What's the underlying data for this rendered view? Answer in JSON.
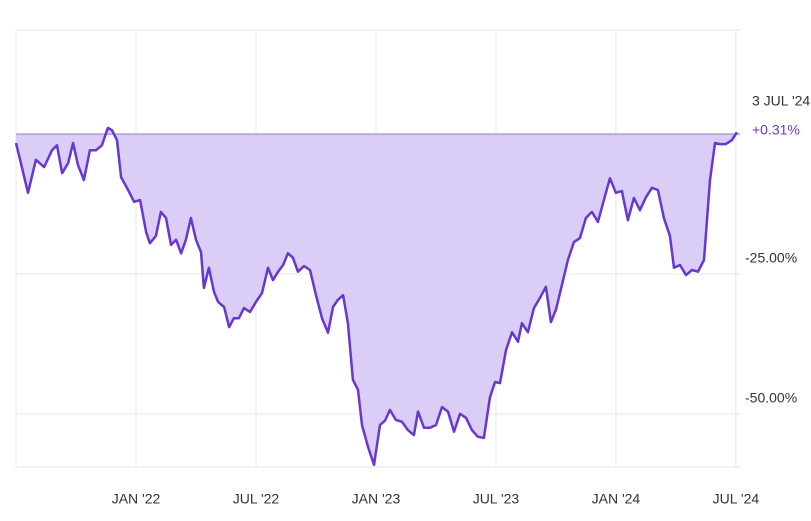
{
  "chart_data": {
    "type": "area",
    "color": "#6837cf",
    "fill": "#dacdf6",
    "grid": true,
    "xlim": [
      2021.5,
      2024.517
    ],
    "xticks": [
      {
        "value": 2022,
        "label": "JAN '22"
      },
      {
        "value": 2022.5,
        "label": "JUL '22"
      },
      {
        "value": 2023,
        "label": "JAN '23"
      },
      {
        "value": 2023.5,
        "label": "JUL '23"
      },
      {
        "value": 2024,
        "label": "JAN '24"
      },
      {
        "value": 2024.5,
        "label": "JUL '24"
      }
    ],
    "ylim": [
      -59.5,
      18.6
    ],
    "yticks": [
      {
        "value": -25,
        "label": "-25.00%"
      },
      {
        "value": -50,
        "label": "-50.00%"
      }
    ],
    "annotation_date": "3 JUL '24",
    "annotation_label": "+0.31%",
    "x": [
      2021.5,
      2021.517,
      2021.55,
      2021.583,
      2021.617,
      2021.65,
      2021.671,
      2021.692,
      2021.717,
      2021.738,
      2021.758,
      2021.783,
      2021.808,
      2021.833,
      2021.858,
      2021.883,
      2021.9,
      2021.921,
      2021.938,
      2021.967,
      2021.992,
      2022.017,
      2022.042,
      2022.058,
      2022.083,
      2022.104,
      2022.125,
      2022.146,
      2022.167,
      2022.188,
      2022.208,
      2022.229,
      2022.25,
      2022.271,
      2022.283,
      2022.304,
      2022.325,
      2022.342,
      2022.367,
      2022.388,
      2022.408,
      2022.429,
      2022.45,
      2022.475,
      2022.5,
      2022.525,
      2022.55,
      2022.571,
      2022.592,
      2022.613,
      2022.633,
      2022.654,
      2022.675,
      2022.7,
      2022.725,
      2022.75,
      2022.775,
      2022.8,
      2022.821,
      2022.842,
      2022.863,
      2022.883,
      2022.904,
      2022.925,
      2022.942,
      2022.967,
      2022.992,
      2023.017,
      2023.038,
      2023.058,
      2023.083,
      2023.108,
      2023.133,
      2023.158,
      2023.175,
      2023.2,
      2023.225,
      2023.25,
      2023.275,
      2023.3,
      2023.325,
      2023.35,
      2023.375,
      2023.4,
      2023.425,
      2023.45,
      2023.475,
      2023.496,
      2023.517,
      2023.542,
      2023.567,
      2023.592,
      2023.608,
      2023.633,
      2023.658,
      2023.683,
      2023.708,
      2023.729,
      2023.75,
      2023.775,
      2023.8,
      2023.825,
      2023.85,
      2023.875,
      2023.9,
      2023.925,
      2023.95,
      2023.975,
      2024,
      2024.025,
      2024.05,
      2024.075,
      2024.1,
      2024.125,
      2024.15,
      2024.175,
      2024.2,
      2024.225,
      2024.242,
      2024.267,
      2024.292,
      2024.317,
      2024.342,
      2024.367,
      2024.392,
      2024.413,
      2024.433,
      2024.458,
      2024.483,
      2024.504
    ],
    "values": [
      -1.6,
      -4.6,
      -10.5,
      -4.6,
      -5.9,
      -2.9,
      -2,
      -7,
      -5.2,
      -1.6,
      -5.5,
      -8.2,
      -2.9,
      -2.9,
      -2,
      1.1,
      0.7,
      -1.1,
      -7.7,
      -10,
      -12.1,
      -11.8,
      -17.5,
      -19.5,
      -18.2,
      -13.9,
      -15,
      -19.8,
      -18.9,
      -21.3,
      -18.9,
      -15,
      -18.9,
      -21.1,
      -27.5,
      -23.9,
      -28.2,
      -30,
      -30.9,
      -34.5,
      -32.9,
      -32.9,
      -31.1,
      -31.8,
      -30,
      -28.4,
      -23.9,
      -26.1,
      -24.6,
      -23.4,
      -21.3,
      -22.1,
      -24.6,
      -23.6,
      -24.3,
      -28.8,
      -32.9,
      -35.5,
      -30.9,
      -29.6,
      -28.8,
      -33.8,
      -43.9,
      -45.7,
      -52,
      -55.9,
      -59.1,
      -52,
      -51.2,
      -49.3,
      -51.1,
      -51.4,
      -52.9,
      -53.8,
      -49.6,
      -52.5,
      -52.5,
      -52,
      -48.8,
      -49.6,
      -53.2,
      -50,
      -50.7,
      -52.9,
      -54.1,
      -54.3,
      -47.1,
      -44.3,
      -44.5,
      -38.6,
      -35.4,
      -37.1,
      -33.8,
      -35.4,
      -31.1,
      -29.3,
      -27.3,
      -33.6,
      -31.4,
      -27,
      -22.5,
      -19.3,
      -18.6,
      -15,
      -13.9,
      -15.7,
      -11.8,
      -7.9,
      -10.5,
      -10.2,
      -15.4,
      -11.4,
      -13.6,
      -11.3,
      -9.6,
      -10,
      -15,
      -18.2,
      -23.9,
      -23.4,
      -25.2,
      -24.3,
      -24.6,
      -22.5,
      -8.2,
      -1.6,
      -1.8,
      -1.8,
      -1.1,
      0.31
    ]
  }
}
